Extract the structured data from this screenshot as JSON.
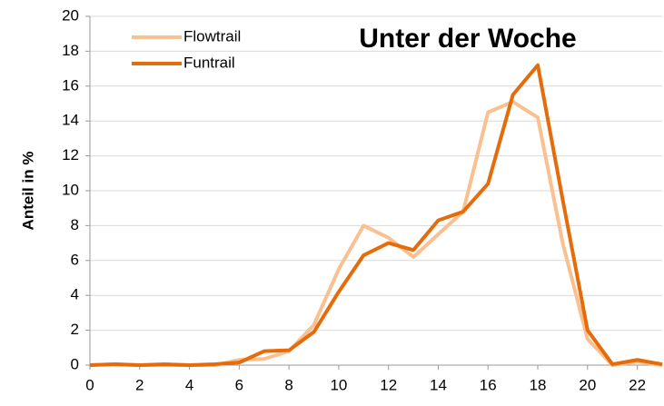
{
  "chart_data": {
    "type": "line",
    "title": "Unter der Woche",
    "y_label": "Anteil in %",
    "x": [
      0,
      1,
      2,
      3,
      4,
      5,
      6,
      7,
      8,
      9,
      10,
      11,
      12,
      13,
      14,
      15,
      16,
      17,
      18,
      19,
      20,
      21,
      22,
      23
    ],
    "series": [
      {
        "name": "Flowtrail",
        "color": "#fac090",
        "values": [
          0,
          0.05,
          0,
          0,
          0,
          0,
          0.3,
          0.35,
          0.8,
          2.3,
          5.5,
          8.0,
          7.3,
          6.2,
          7.5,
          8.8,
          14.5,
          15.1,
          14.2,
          7.0,
          1.5,
          0,
          0.2,
          0
        ]
      },
      {
        "name": "Funtrail",
        "color": "#e46c0a",
        "values": [
          0,
          0.05,
          0,
          0.05,
          0,
          0.05,
          0.15,
          0.8,
          0.85,
          1.9,
          4.2,
          6.3,
          7.0,
          6.6,
          8.3,
          8.8,
          10.4,
          15.5,
          17.2,
          9.5,
          2.0,
          0.05,
          0.3,
          0.05
        ]
      }
    ],
    "xlim": [
      0,
      23
    ],
    "xticks": [
      0,
      2,
      4,
      6,
      8,
      10,
      12,
      14,
      16,
      18,
      20,
      22
    ],
    "ylim": [
      0,
      20
    ],
    "yticks": [
      0,
      2,
      4,
      6,
      8,
      10,
      12,
      14,
      16,
      18,
      20
    ],
    "grid": true,
    "legend": "upper left"
  }
}
